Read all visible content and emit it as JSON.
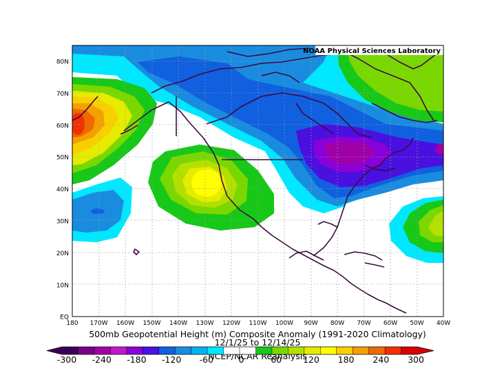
{
  "credit": "NOAA Physical Sciences Laboratory",
  "title": "500mb Geopotential Height (m) Composite Anomaly (1991-2020 Climatology)",
  "date_range": "12/1/25 to 12/14/25",
  "source": "NCEP/NCAR Reanalysis",
  "lat_labels": [
    "80N",
    "70N",
    "60N",
    "50N",
    "40N",
    "30N",
    "20N",
    "10N",
    "EQ"
  ],
  "lon_labels": [
    "180",
    "170W",
    "160W",
    "150W",
    "140W",
    "130W",
    "120W",
    "110W",
    "100W",
    "90W",
    "80W",
    "70W",
    "60W",
    "50W",
    "40W"
  ],
  "colorbar": {
    "labels": [
      "-300",
      "-240",
      "-180",
      "-120",
      "-60",
      "0",
      "60",
      "120",
      "180",
      "240",
      "300"
    ],
    "colors": [
      "#3a0058",
      "#7b0087",
      "#a000a8",
      "#c018c8",
      "#8a00d8",
      "#4a10e0",
      "#1060e0",
      "#1a8ce0",
      "#00b4f0",
      "#00e8ff",
      "#ffffff",
      "#ffffff",
      "#18c818",
      "#7ad800",
      "#b4e000",
      "#e6ec00",
      "#ffff00",
      "#f8d000",
      "#f5a000",
      "#f06800",
      "#f03000",
      "#d80000"
    ]
  },
  "colors": {
    "land_outline": "#3d0a40",
    "grid": "#9a9a9a",
    "frame": "#000000"
  }
}
